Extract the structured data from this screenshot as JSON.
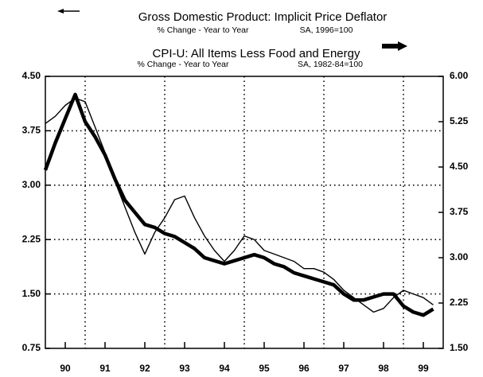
{
  "chart_data": {
    "type": "line",
    "title": "Gross Domestic Product: Implicit Price Deflator",
    "subtitle": "% Change - Year to Year",
    "note": "SA, 1996=100",
    "title2": "CPI-U: All Items Less Food and Energy",
    "subtitle2": "% Change - Year to Year",
    "note2": "SA, 1982-84=100",
    "x": [
      1990,
      1990.25,
      1990.5,
      1990.75,
      1991,
      1991.25,
      1991.5,
      1991.75,
      1992,
      1992.25,
      1992.5,
      1992.75,
      1993,
      1993.25,
      1993.5,
      1993.75,
      1994,
      1994.25,
      1994.5,
      1994.75,
      1995,
      1995.25,
      1995.5,
      1995.75,
      1996,
      1996.25,
      1996.5,
      1996.75,
      1997,
      1997.25,
      1997.5,
      1997.75,
      1998,
      1998.25,
      1998.5,
      1998.75,
      1999,
      1999.25,
      1999.5,
      1999.75
    ],
    "series": [
      {
        "name": "Gross Domestic Product: Implicit Price Deflator",
        "color": "#000000",
        "width": 1.4,
        "values": [
          3.85,
          3.95,
          4.1,
          4.2,
          4.15,
          3.8,
          3.45,
          3.05,
          2.7,
          2.35,
          2.05,
          2.35,
          2.55,
          2.8,
          2.85,
          2.55,
          2.3,
          2.1,
          1.95,
          2.1,
          2.3,
          2.25,
          2.1,
          2.05,
          2.0,
          1.95,
          1.85,
          1.85,
          1.8,
          1.7,
          1.55,
          1.45,
          1.35,
          1.25,
          1.3,
          1.45,
          1.55,
          1.5,
          1.45,
          1.35
        ]
      },
      {
        "name": "CPI-U: All Items Less Food and Energy",
        "color": "#000000",
        "width": 4.5,
        "axis": "y2",
        "values": [
          4.45,
          4.9,
          5.3,
          5.7,
          5.25,
          5.0,
          4.7,
          4.3,
          3.95,
          3.75,
          3.55,
          3.5,
          3.4,
          3.35,
          3.25,
          3.15,
          3.0,
          2.95,
          2.9,
          2.95,
          3.0,
          3.05,
          3.0,
          2.9,
          2.85,
          2.75,
          2.7,
          2.65,
          2.6,
          2.55,
          2.4,
          2.3,
          2.3,
          2.35,
          2.4,
          2.4,
          2.2,
          2.1,
          2.05,
          2.15
        ]
      }
    ],
    "xlim": [
      1990,
      2000
    ],
    "xticks": [
      {
        "value": 1990.5,
        "label": "90"
      },
      {
        "value": 1991.5,
        "label": "91"
      },
      {
        "value": 1992.5,
        "label": "92"
      },
      {
        "value": 1993.5,
        "label": "93"
      },
      {
        "value": 1994.5,
        "label": "94"
      },
      {
        "value": 1995.5,
        "label": "95"
      },
      {
        "value": 1996.5,
        "label": "96"
      },
      {
        "value": 1997.5,
        "label": "97"
      },
      {
        "value": 1998.5,
        "label": "98"
      },
      {
        "value": 1999.5,
        "label": "99"
      }
    ],
    "xgrid": [
      1991,
      1993,
      1995,
      1997,
      1999
    ],
    "ylim": [
      0.75,
      4.5
    ],
    "yticks": [
      0.75,
      {
        "value": 1.5,
        "label": "1.50"
      },
      2.25,
      {
        "value": 3,
        "label": "3.00"
      },
      3.75,
      {
        "value": 4.5,
        "label": "4.50"
      }
    ],
    "y2lim": [
      1.5,
      6
    ],
    "y2ticks": [
      {
        "value": 1.5,
        "label": "1.50"
      },
      2.25,
      {
        "value": 3,
        "label": "3.00"
      },
      3.75,
      {
        "value": 4.5,
        "label": "4.50"
      },
      5.25,
      {
        "value": 6,
        "label": "6.00"
      }
    ],
    "grid": true
  }
}
